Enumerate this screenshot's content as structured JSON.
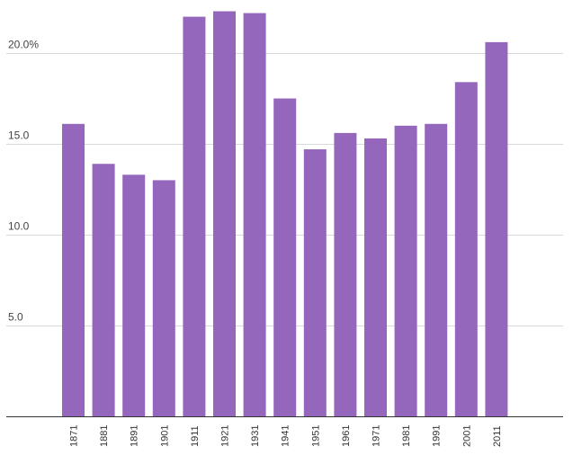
{
  "chart_data": {
    "type": "bar",
    "title": "",
    "xlabel": "",
    "ylabel": "",
    "categories": [
      "1871",
      "1881",
      "1891",
      "1901",
      "1911",
      "1921",
      "1931",
      "1941",
      "1951",
      "1961",
      "1971",
      "1981",
      "1991",
      "2001",
      "2011"
    ],
    "values": [
      16.1,
      13.9,
      13.3,
      13.0,
      22.0,
      22.3,
      22.2,
      17.5,
      14.7,
      15.6,
      15.3,
      16.0,
      16.1,
      18.4,
      20.6
    ],
    "ylim": [
      0,
      22.9
    ],
    "yticks": [
      {
        "value": 5,
        "label": "5.0"
      },
      {
        "value": 10,
        "label": "10.0"
      },
      {
        "value": 15,
        "label": "15.0"
      },
      {
        "value": 20,
        "label": "20.0%"
      }
    ],
    "grid": true,
    "legend": "none",
    "bar_color": "#9467bd",
    "grid_color": "#d9d9d9",
    "axis_color": "#333333"
  }
}
